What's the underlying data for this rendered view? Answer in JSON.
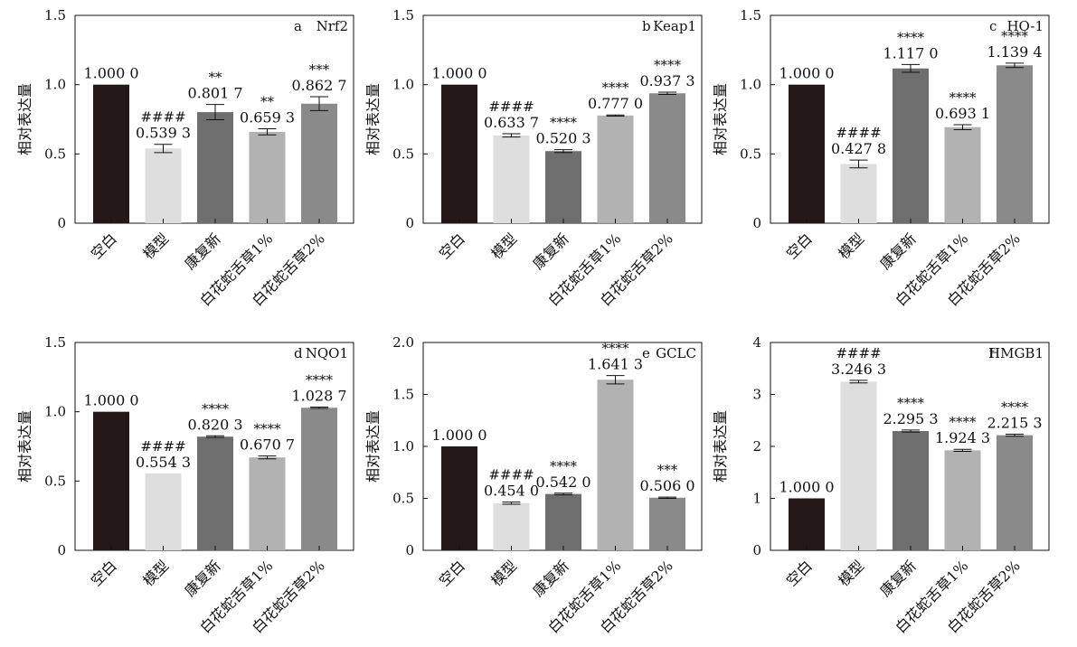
{
  "colors": [
    "#231815",
    "#dedede",
    "#6e6e6e",
    "#b2b2b2",
    "#8a8a8a"
  ],
  "chart_data": [
    {
      "type": "bar",
      "panel_letter": "a",
      "panel_name": "Nrf2",
      "ylabel": "相对表达量",
      "ylim": [
        0,
        1.5
      ],
      "yticks": [
        "0",
        "0.5",
        "1.0",
        "1.5"
      ],
      "categories": [
        "空白",
        "模型",
        "康复新",
        "白花蛇舌草1%",
        "白花蛇舌草2%"
      ],
      "values": [
        1.0,
        0.5393,
        0.8017,
        0.6593,
        0.8627
      ],
      "errors": [
        0,
        0.03,
        0.055,
        0.022,
        0.05
      ],
      "value_labels": [
        "1.000 0",
        "0.539 3",
        "0.801 7",
        "0.659 3",
        "0.862 7"
      ],
      "significance": [
        "",
        "####",
        "**",
        "**",
        "***"
      ]
    },
    {
      "type": "bar",
      "panel_letter": "b",
      "panel_name": "Keap1",
      "ylabel": "相对表达量",
      "ylim": [
        0,
        1.5
      ],
      "yticks": [
        "0",
        "0.5",
        "1.0",
        "1.5"
      ],
      "categories": [
        "空白",
        "模型",
        "康复新",
        "白花蛇舌草1%",
        "白花蛇舌草2%"
      ],
      "values": [
        1.0,
        0.6337,
        0.5203,
        0.777,
        0.9373
      ],
      "errors": [
        0,
        0.012,
        0.01,
        0.004,
        0.008
      ],
      "value_labels": [
        "1.000 0",
        "0.633 7",
        "0.520 3",
        "0.777 0",
        "0.937 3"
      ],
      "significance": [
        "",
        "####",
        "****",
        "****",
        "****"
      ]
    },
    {
      "type": "bar",
      "panel_letter": "c",
      "panel_name": "HO-1",
      "ylabel": "相对表达量",
      "ylim": [
        0,
        1.5
      ],
      "yticks": [
        "0",
        "0.5",
        "1.0",
        "1.5"
      ],
      "categories": [
        "空白",
        "模型",
        "康复新",
        "白花蛇舌草1%",
        "白花蛇舌草2%"
      ],
      "values": [
        1.0,
        0.4278,
        1.117,
        0.6931,
        1.1394
      ],
      "errors": [
        0,
        0.028,
        0.028,
        0.018,
        0.016
      ],
      "value_labels": [
        "1.000 0",
        "0.427 8",
        "1.117 0",
        "0.693 1",
        "1.139 4"
      ],
      "significance": [
        "",
        "####",
        "****",
        "****",
        "****"
      ]
    },
    {
      "type": "bar",
      "panel_letter": "d",
      "panel_name": "NQO1",
      "ylabel": "相对表达量",
      "ylim": [
        0,
        1.5
      ],
      "yticks": [
        "0",
        "0.5",
        "1.0",
        "1.5"
      ],
      "categories": [
        "空白",
        "模型",
        "康复新",
        "白花蛇舌草1%",
        "白花蛇舌草2%"
      ],
      "values": [
        1.0,
        0.5543,
        0.8203,
        0.6707,
        1.0287
      ],
      "errors": [
        0,
        0.0,
        0.006,
        0.01,
        0.005
      ],
      "value_labels": [
        "1.000 0",
        "0.554 3",
        "0.820 3",
        "0.670 7",
        "1.028 7"
      ],
      "significance": [
        "",
        "####",
        "****",
        "****",
        "****"
      ]
    },
    {
      "type": "bar",
      "panel_letter": "e",
      "panel_name": "GCLC",
      "ylabel": "相对表达量",
      "ylim": [
        0,
        2.0
      ],
      "yticks": [
        "0",
        "0.5",
        "1.0",
        "1.5",
        "2.0"
      ],
      "categories": [
        "空白",
        "模型",
        "康复新",
        "白花蛇舌草1%",
        "白花蛇舌草2%"
      ],
      "values": [
        1.0,
        0.454,
        0.542,
        1.6413,
        0.506
      ],
      "errors": [
        0,
        0.01,
        0.008,
        0.04,
        0.006
      ],
      "value_labels": [
        "1.000 0",
        "0.454 0",
        "0.542 0",
        "1.641 3",
        "0.506 0"
      ],
      "significance": [
        "",
        "####",
        "****",
        "****",
        "***"
      ]
    },
    {
      "type": "bar",
      "panel_letter": "f",
      "panel_name": "HMGB1",
      "ylabel": "相对表达量",
      "ylim": [
        0,
        4
      ],
      "yticks": [
        "0",
        "1",
        "2",
        "3",
        "4"
      ],
      "categories": [
        "空白",
        "模型",
        "康复新",
        "白花蛇舌草1%",
        "白花蛇舌草2%"
      ],
      "values": [
        1.0,
        3.2463,
        2.2953,
        1.9243,
        2.2153
      ],
      "errors": [
        0,
        0.025,
        0.02,
        0.02,
        0.02
      ],
      "value_labels": [
        "1.000 0",
        "3.246 3",
        "2.295 3",
        "1.924 3",
        "2.215 3"
      ],
      "significance": [
        "",
        "####",
        "****",
        "****",
        "****"
      ]
    }
  ]
}
